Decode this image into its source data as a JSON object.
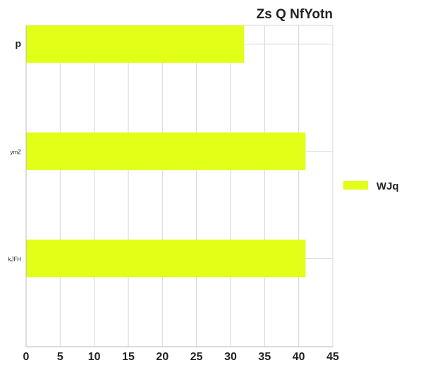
{
  "chart_data": {
    "type": "bar",
    "orientation": "horizontal",
    "title": "Zs Q NfYotn",
    "categories": [
      "p",
      "ymZ",
      "kJFH"
    ],
    "series": [
      {
        "name": "WJq",
        "values": [
          32,
          41,
          41
        ],
        "color": "#e1ff17"
      }
    ],
    "xlim": [
      0,
      45
    ],
    "x_ticks": [
      0,
      5,
      10,
      15,
      20,
      25,
      30,
      35,
      40,
      45
    ],
    "xlabel": "",
    "ylabel": "",
    "grid": true,
    "legend_position": "right"
  }
}
